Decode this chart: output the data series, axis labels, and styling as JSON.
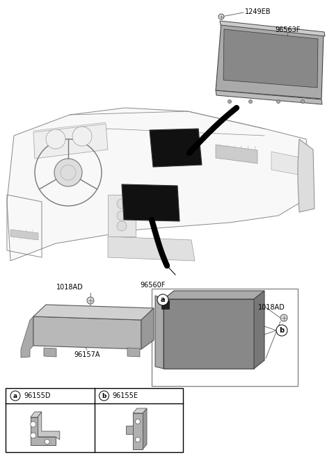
{
  "bg_color": "#ffffff",
  "line_color": "#888888",
  "dark_line_color": "#444444",
  "black_color": "#111111",
  "fill_light": "#cccccc",
  "fill_medium": "#999999",
  "fill_dark": "#555555",
  "figsize": [
    4.8,
    6.57
  ],
  "dpi": 100,
  "label_1249EB": "1249EB",
  "label_96563F": "96563F",
  "label_96560F": "96560F",
  "label_1018AD_L": "1018AD",
  "label_96157A": "96157A",
  "label_1018AD_R": "1018AD",
  "label_96155D": "96155D",
  "label_96155E": "96155E",
  "label_a": "a",
  "label_b": "b",
  "font_size_label": 7,
  "font_size_small": 6
}
